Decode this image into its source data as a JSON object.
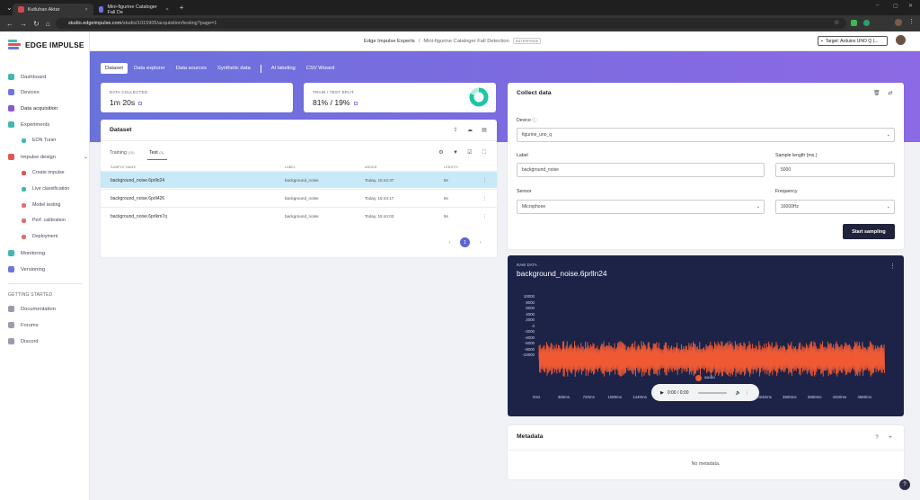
{
  "browser": {
    "tabs": [
      {
        "title": "Kutluhan Aktar",
        "active": true
      },
      {
        "title": "Mini-figurine Cataloger Fall De",
        "active": false
      }
    ],
    "url_host": "studio.edgeimpulse.com",
    "url_path": "/studio/1015905/acquisition/testing?page=1"
  },
  "sidebar": {
    "brand": "EDGE IMPULSE",
    "items": [
      {
        "label": "Dashboard",
        "icon": "monitor-icon",
        "color": "#42b8b0"
      },
      {
        "label": "Devices",
        "icon": "devices-icon",
        "color": "#6b74e0"
      },
      {
        "label": "Data acquisition",
        "icon": "database-icon",
        "color": "#8a57d6",
        "active": true
      },
      {
        "label": "Experiments",
        "icon": "grid-icon",
        "color": "#42b8b0"
      },
      {
        "label": "EON Tuner",
        "icon": "tuner-icon",
        "color": "#42b8b0",
        "sub": true
      },
      {
        "label": "Impulse design",
        "icon": "pulse-icon",
        "color": "#e05555",
        "expandable": true
      },
      {
        "label": "Create impulse",
        "icon": "dot-icon",
        "color": "#e05555",
        "sub": true
      },
      {
        "label": "Live classification",
        "icon": "flask-icon",
        "color": "#42b8b0",
        "sub": true
      },
      {
        "label": "Model testing",
        "icon": "test-icon",
        "color": "#e07070",
        "sub": true
      },
      {
        "label": "Perf. calibration",
        "icon": "calibration-icon",
        "color": "#e07070",
        "sub": true
      },
      {
        "label": "Deployment",
        "icon": "deploy-icon",
        "color": "#e07070",
        "sub": true
      },
      {
        "label": "Monitoring",
        "icon": "monitoring-icon",
        "color": "#42b8b0"
      },
      {
        "label": "Versioning",
        "icon": "versioning-icon",
        "color": "#6b74e0"
      }
    ],
    "getting_started_heading": "GETTING STARTED",
    "getting_started": [
      {
        "label": "Documentation",
        "icon": "book-icon"
      },
      {
        "label": "Forums",
        "icon": "chat-icon"
      },
      {
        "label": "Discord",
        "icon": "discord-icon"
      }
    ]
  },
  "topbar": {
    "org": "Edge Impulse Experts",
    "separator": "/",
    "project": "Mini-figurine Cataloger Fall Detection",
    "badge": "ENTERPRISE",
    "target": "Target: Arduino UNO Q (..."
  },
  "subtabs": [
    "Dataset",
    "Data explorer",
    "Data sources",
    "Synthetic data",
    "AI labeling",
    "CSV Wizard"
  ],
  "stats": {
    "collected_label": "DATA COLLECTED",
    "collected_value": "1m 20s",
    "split_label": "TRAIN / TEST SPLIT",
    "split_value": "81% / 19%",
    "train_fraction": 0.81
  },
  "dataset": {
    "title": "Dataset",
    "tab_training": "Training",
    "tab_training_count": "(15)",
    "tab_test": "Test",
    "tab_test_count": "(3)",
    "columns": [
      "SAMPLE NAME",
      "LABEL",
      "ADDED",
      "LENGTH"
    ],
    "rows": [
      {
        "name": "background_noise.6prlln24",
        "label": "background_noise",
        "added": "Today, 15:44:37",
        "length": "5s",
        "selected": true
      },
      {
        "name": "background_noise.6prll426",
        "label": "background_noise",
        "added": "Today, 15:44:17",
        "length": "5s"
      },
      {
        "name": "background_noise.6prlkm7q",
        "label": "background_noise",
        "added": "Today, 15:44:03",
        "length": "5s"
      }
    ],
    "page": "1",
    "prev": "‹",
    "next": "›"
  },
  "collect": {
    "title": "Collect data",
    "device_label": "Device",
    "device_value": "figurine_uno_q",
    "label_label": "Label",
    "label_value": "background_noise",
    "length_label": "Sample length (ms.)",
    "length_value": "5000",
    "sensor_label": "Sensor",
    "sensor_value": "Microphone",
    "freq_label": "Frequency",
    "freq_value": "16000Hz",
    "start_button": "Start sampling"
  },
  "raw": {
    "heading": "RAW DATA",
    "name": "background_noise.6prlln24",
    "y_ticks": [
      "10000",
      "8000",
      "6000",
      "4000",
      "2000",
      "0",
      "-2000",
      "-4000",
      "-6000",
      "-8000",
      "-10000"
    ],
    "x_ticks": [
      "0ms",
      "360ms",
      "720ms",
      "1080ms",
      "1440ms",
      "1800ms",
      "2160ms",
      "2520ms",
      "2880ms",
      "3240ms",
      "3600ms",
      "3960ms",
      "4320ms",
      "4680ms"
    ],
    "legend": "audio",
    "wave_color": "#ef5a35",
    "player_time": "0:00 / 0:00"
  },
  "metadata": {
    "title": "Metadata",
    "empty": "No metadata."
  },
  "help": "?"
}
